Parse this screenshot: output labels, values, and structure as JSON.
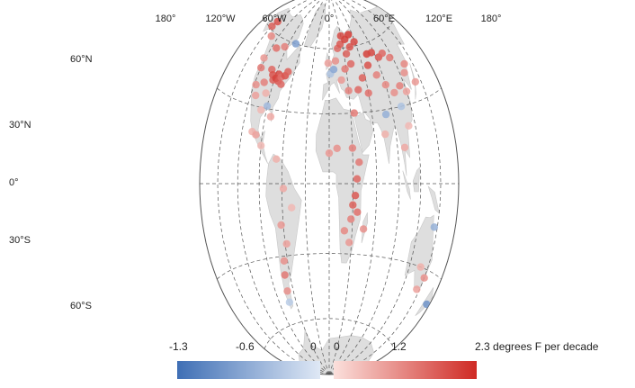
{
  "map": {
    "meridian_labels": [
      "180°",
      "120°W",
      "60°W",
      "0°",
      "60°E",
      "120°E",
      "180°"
    ],
    "parallel_labels": [
      "60°N",
      "30°N",
      "0°",
      "30°S",
      "60°S"
    ]
  },
  "legend": {
    "neg_ticks": [
      "-1.3",
      "-0.6",
      "0"
    ],
    "pos_ticks": [
      "0",
      "1.2",
      "2.3 degrees F per decade"
    ],
    "neg_range": [
      -1.3,
      0
    ],
    "pos_range": [
      0,
      2.3
    ],
    "colors": {
      "neg_dark": "#3f6fb5",
      "neg_light": "#dfe8f5",
      "pos_light": "#fbe0dc",
      "pos_dark": "#cf2a24"
    }
  },
  "colors": {
    "land": "#dedede",
    "ocean": "#ffffff",
    "grid": "#555555"
  },
  "stations": [
    {
      "lon": -150,
      "lat": 61,
      "v": 1.6
    },
    {
      "lon": -148,
      "lat": 64,
      "v": 1.8
    },
    {
      "lon": -135,
      "lat": 58,
      "v": 1.1
    },
    {
      "lon": -123,
      "lat": 49,
      "v": 0.9
    },
    {
      "lon": -120,
      "lat": 45,
      "v": 1.3
    },
    {
      "lon": -117,
      "lat": 38,
      "v": 1.0
    },
    {
      "lon": -112,
      "lat": 34,
      "v": 0.8
    },
    {
      "lon": -105,
      "lat": 40,
      "v": 1.2
    },
    {
      "lon": -100,
      "lat": 46,
      "v": 1.5
    },
    {
      "lon": -95,
      "lat": 44,
      "v": 1.8
    },
    {
      "lon": -92,
      "lat": 42,
      "v": 1.6
    },
    {
      "lon": -88,
      "lat": 43,
      "v": 2.0
    },
    {
      "lon": -85,
      "lat": 45,
      "v": 1.9
    },
    {
      "lon": -83,
      "lat": 42,
      "v": 1.7
    },
    {
      "lon": -80,
      "lat": 44,
      "v": 1.4
    },
    {
      "lon": -77,
      "lat": 41,
      "v": 1.5
    },
    {
      "lon": -74,
      "lat": 45,
      "v": 1.8
    },
    {
      "lon": -71,
      "lat": 47,
      "v": 1.6
    },
    {
      "lon": -97,
      "lat": 36,
      "v": 0.6
    },
    {
      "lon": -90,
      "lat": 31,
      "v": -0.5
    },
    {
      "lon": -98,
      "lat": 29,
      "v": 0.5
    },
    {
      "lon": -82,
      "lat": 27,
      "v": 0.7
    },
    {
      "lon": -110,
      "lat": 55,
      "v": 1.4
    },
    {
      "lon": -95,
      "lat": 57,
      "v": 1.2
    },
    {
      "lon": -75,
      "lat": 60,
      "v": -0.8
    },
    {
      "lon": -105,
      "lat": 20,
      "v": 0.6
    },
    {
      "lon": -99,
      "lat": 19,
      "v": 0.8
    },
    {
      "lon": -90,
      "lat": 15,
      "v": 0.5
    },
    {
      "lon": -68,
      "lat": 10,
      "v": 0.6
    },
    {
      "lon": -58,
      "lat": -2,
      "v": 0.7
    },
    {
      "lon": -48,
      "lat": -10,
      "v": 0.5
    },
    {
      "lon": -63,
      "lat": -17,
      "v": 0.9
    },
    {
      "lon": -58,
      "lat": -25,
      "v": 0.8
    },
    {
      "lon": -65,
      "lat": -32,
      "v": 1.0
    },
    {
      "lon": -68,
      "lat": -38,
      "v": 1.3
    },
    {
      "lon": -70,
      "lat": -45,
      "v": 1.0
    },
    {
      "lon": -72,
      "lat": -50,
      "v": -0.3
    },
    {
      "lon": -2,
      "lat": 53,
      "v": 0.8
    },
    {
      "lon": 2,
      "lat": 48,
      "v": -0.4
    },
    {
      "lon": 8,
      "lat": 50,
      "v": -0.7
    },
    {
      "lon": 12,
      "lat": 54,
      "v": 1.0
    },
    {
      "lon": 18,
      "lat": 60,
      "v": 1.5
    },
    {
      "lon": 25,
      "lat": 62,
      "v": 1.7
    },
    {
      "lon": 30,
      "lat": 66,
      "v": 1.9
    },
    {
      "lon": 38,
      "lat": 64,
      "v": 2.0
    },
    {
      "lon": 45,
      "lat": 60,
      "v": 1.8
    },
    {
      "lon": 50,
      "lat": 66,
      "v": 2.1
    },
    {
      "lon": 58,
      "lat": 62,
      "v": 1.9
    },
    {
      "lon": 35,
      "lat": 57,
      "v": 1.6
    },
    {
      "lon": 40,
      "lat": 52,
      "v": 1.5
    },
    {
      "lon": 28,
      "lat": 50,
      "v": 1.3
    },
    {
      "lon": 20,
      "lat": 45,
      "v": 0.9
    },
    {
      "lon": 30,
      "lat": 40,
      "v": 1.2
    },
    {
      "lon": 45,
      "lat": 40,
      "v": 1.5
    },
    {
      "lon": 55,
      "lat": 45,
      "v": 1.6
    },
    {
      "lon": 60,
      "lat": 38,
      "v": 1.4
    },
    {
      "lon": 70,
      "lat": 50,
      "v": 1.8
    },
    {
      "lon": 75,
      "lat": 55,
      "v": 2.0
    },
    {
      "lon": 85,
      "lat": 55,
      "v": 1.9
    },
    {
      "lon": 95,
      "lat": 52,
      "v": 1.7
    },
    {
      "lon": 105,
      "lat": 53,
      "v": 1.5
    },
    {
      "lon": 115,
      "lat": 50,
      "v": 1.3
    },
    {
      "lon": 80,
      "lat": 45,
      "v": 1.2
    },
    {
      "lon": 90,
      "lat": 40,
      "v": 1.1
    },
    {
      "lon": 100,
      "lat": 36,
      "v": 1.0
    },
    {
      "lon": 112,
      "lat": 38,
      "v": 1.2
    },
    {
      "lon": 120,
      "lat": 35,
      "v": 0.8
    },
    {
      "lon": 128,
      "lat": 42,
      "v": 1.0
    },
    {
      "lon": 135,
      "lat": 45,
      "v": 1.1
    },
    {
      "lon": 140,
      "lat": 37,
      "v": 0.9
    },
    {
      "lon": 80,
      "lat": 28,
      "v": -0.6
    },
    {
      "lon": 75,
      "lat": 20,
      "v": 0.6
    },
    {
      "lon": 105,
      "lat": 30,
      "v": -0.4
    },
    {
      "lon": 110,
      "lat": 22,
      "v": 0.5
    },
    {
      "lon": 100,
      "lat": 14,
      "v": 0.7
    },
    {
      "lon": 0,
      "lat": 13,
      "v": 0.9
    },
    {
      "lon": 10,
      "lat": 15,
      "v": 1.0
    },
    {
      "lon": 30,
      "lat": 15,
      "v": 1.2
    },
    {
      "lon": 38,
      "lat": 9,
      "v": 1.3
    },
    {
      "lon": 35,
      "lat": 2,
      "v": 1.5
    },
    {
      "lon": 33,
      "lat": -5,
      "v": 1.7
    },
    {
      "lon": 30,
      "lat": -9,
      "v": 1.6
    },
    {
      "lon": 36,
      "lat": -12,
      "v": 1.4
    },
    {
      "lon": 28,
      "lat": -15,
      "v": 1.2
    },
    {
      "lon": 20,
      "lat": -20,
      "v": 1.1
    },
    {
      "lon": 27,
      "lat": -25,
      "v": 0.9
    },
    {
      "lon": 45,
      "lat": -19,
      "v": 1.0
    },
    {
      "lon": 35,
      "lat": 30,
      "v": 1.3
    },
    {
      "lon": 145,
      "lat": -15,
      "v": -0.6
    },
    {
      "lon": 145,
      "lat": -38,
      "v": 0.8
    },
    {
      "lon": 150,
      "lat": -33,
      "v": 1.0
    },
    {
      "lon": 138,
      "lat": -30,
      "v": 0.6
    },
    {
      "lon": 175,
      "lat": -40,
      "v": -0.9
    }
  ]
}
